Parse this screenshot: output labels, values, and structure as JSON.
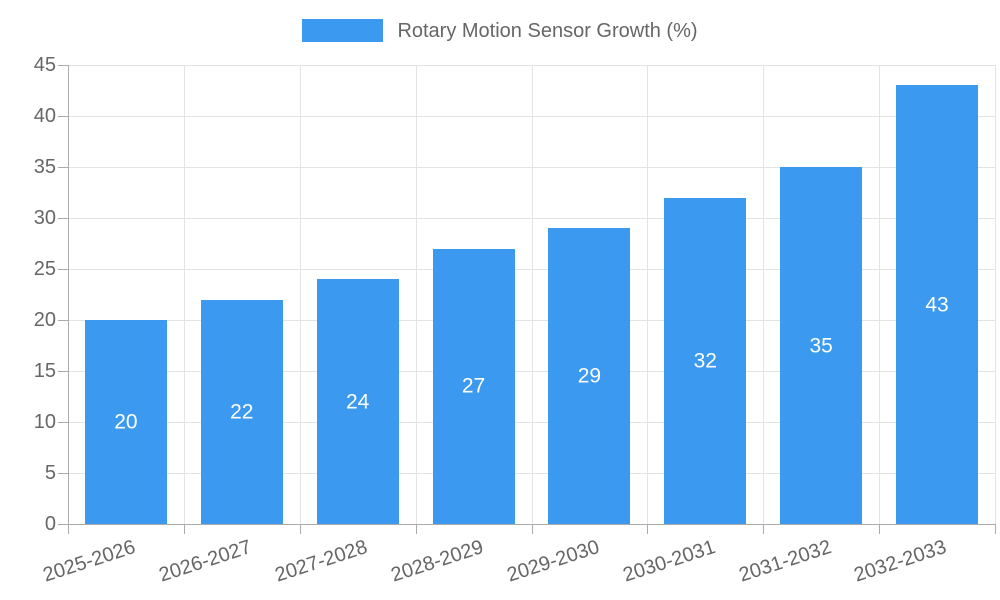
{
  "legend": {
    "label": "Rotary Motion Sensor Growth (%)"
  },
  "chart_data": {
    "type": "bar",
    "title": "Rotary Motion Sensor Growth (%)",
    "categories": [
      "2025-2026",
      "2026-2027",
      "2027-2028",
      "2028-2029",
      "2029-2030",
      "2030-2031",
      "2031-2032",
      "2032-2033"
    ],
    "values": [
      20,
      22,
      24,
      27,
      29,
      32,
      35,
      43
    ],
    "series": [
      {
        "name": "Rotary Motion Sensor Growth (%)",
        "values": [
          20,
          22,
          24,
          27,
          29,
          32,
          35,
          43
        ]
      }
    ],
    "xlabel": "",
    "ylabel": "",
    "ylim": [
      0,
      45
    ],
    "ytick_step": 5,
    "grid": true,
    "legend_position": "top",
    "bar_value_labels_shown": true,
    "colors": {
      "bar": "#3B9AEF",
      "bar_value_label": "#FFFFFF",
      "axis_text": "#666666",
      "gridline": "#E3E3E3",
      "axis_line": "#ABABAB"
    }
  }
}
